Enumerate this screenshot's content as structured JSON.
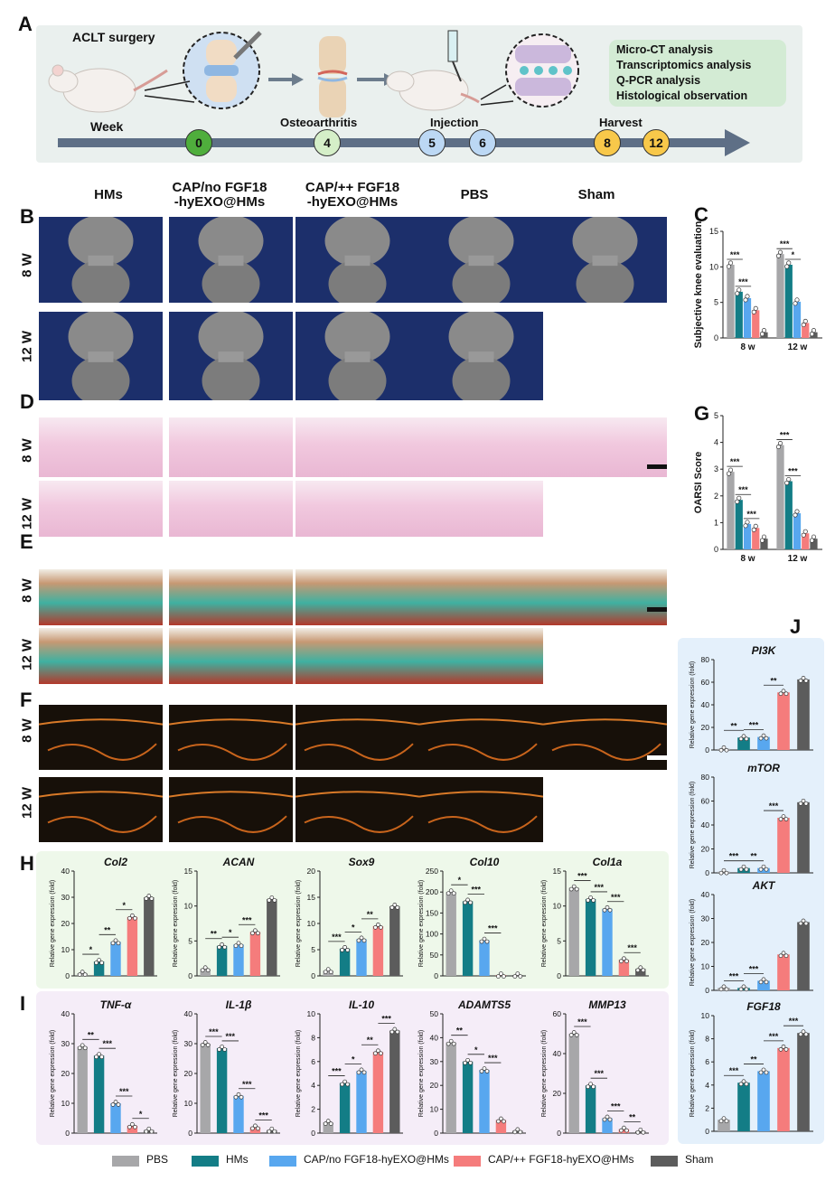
{
  "panel_labels": {
    "A": "A",
    "B": "B",
    "C": "C",
    "D": "D",
    "E": "E",
    "F": "F",
    "G": "G",
    "H": "H",
    "I": "I",
    "J": "J"
  },
  "schematic": {
    "surgery": "ACLT surgery",
    "week": "Week",
    "osteo": "Osteoarthritis",
    "injection": "Injection",
    "harvest": "Harvest",
    "weeks": [
      "0",
      "4",
      "5",
      "6",
      "8",
      "12"
    ],
    "week_colors": [
      "#4fae3c",
      "#d5efc8",
      "#bcd8f4",
      "#bcd8f4",
      "#f8c84a",
      "#f8c84a"
    ],
    "analyses": [
      "Micro-CT analysis",
      "Transcriptomics analysis",
      "Q-PCR analysis",
      "Histological observation"
    ]
  },
  "columns": [
    "HMs",
    "CAP/no FGF18\n-hyEXO@HMs",
    "CAP/++ FGF18\n-hyEXO@HMs",
    "PBS",
    "Sham"
  ],
  "rows": {
    "w8": "8 W",
    "w12": "12 W"
  },
  "legend": [
    {
      "label": "PBS",
      "color": "#a7a7a9"
    },
    {
      "label": "HMs",
      "color": "#137d86"
    },
    {
      "label": "CAP/no FGF18-hyEXO@HMs",
      "color": "#58a7ef"
    },
    {
      "label": "CAP/++ FGF18-hyEXO@HMs",
      "color": "#f57c7c"
    },
    {
      "label": "Sham",
      "color": "#5c5c5c"
    }
  ],
  "chart_data": [
    {
      "id": "C",
      "type": "bar",
      "ylabel": "Subjective knee evaluation",
      "categories": [
        "8 w",
        "12 w"
      ],
      "ylim": [
        0,
        15
      ],
      "yticks": [
        0,
        5,
        10,
        15
      ],
      "series": [
        {
          "name": "PBS",
          "values": [
            10.3,
            11.8
          ]
        },
        {
          "name": "HMs",
          "values": [
            6.5,
            10.3
          ]
        },
        {
          "name": "CAP/no FGF18-hyEXO@HMs",
          "values": [
            5.6,
            5.1
          ]
        },
        {
          "name": "CAP/++ FGF18-hyEXO@HMs",
          "values": [
            3.9,
            2.1
          ]
        },
        {
          "name": "Sham",
          "values": [
            0.8,
            0.8
          ]
        }
      ],
      "annotations": [
        "***",
        "***",
        "***",
        "*"
      ]
    },
    {
      "id": "G",
      "type": "bar",
      "ylabel": "OARSI Score",
      "categories": [
        "8 w",
        "12 w"
      ],
      "ylim": [
        0,
        5
      ],
      "yticks": [
        0,
        1,
        2,
        3,
        4,
        5
      ],
      "series": [
        {
          "name": "PBS",
          "values": [
            2.9,
            3.9
          ]
        },
        {
          "name": "HMs",
          "values": [
            1.85,
            2.55
          ]
        },
        {
          "name": "CAP/no FGF18-hyEXO@HMs",
          "values": [
            0.95,
            1.35
          ]
        },
        {
          "name": "CAP/++ FGF18-hyEXO@HMs",
          "values": [
            0.8,
            0.6
          ]
        },
        {
          "name": "Sham",
          "values": [
            0.4,
            0.4
          ]
        }
      ],
      "annotations": [
        "***",
        "***",
        "***",
        "***",
        "***"
      ]
    },
    {
      "id": "H1",
      "type": "bar",
      "title": "Col2",
      "ylabel": "Relative gene expression (fold)",
      "ylim": [
        0,
        40
      ],
      "yticks": [
        0,
        10,
        20,
        30,
        40
      ],
      "values": [
        1,
        5.5,
        13,
        22.5,
        30
      ],
      "annotations": [
        "*",
        "**",
        "*"
      ]
    },
    {
      "id": "H2",
      "type": "bar",
      "title": "ACAN",
      "ylabel": "Relative gene expression (fold)",
      "ylim": [
        0,
        15
      ],
      "yticks": [
        0,
        5,
        10,
        15
      ],
      "values": [
        1,
        4.3,
        4.5,
        6.3,
        11
      ],
      "annotations": [
        "**",
        "*",
        "***"
      ]
    },
    {
      "id": "H3",
      "type": "bar",
      "title": "Sox9",
      "ylabel": "Relative gene expression (fold)",
      "ylim": [
        0,
        20
      ],
      "yticks": [
        0,
        5,
        10,
        15,
        20
      ],
      "values": [
        1,
        5.2,
        7,
        9.5,
        13.3
      ],
      "annotations": [
        "***",
        "*",
        "**"
      ]
    },
    {
      "id": "H4",
      "type": "bar",
      "title": "Col10",
      "ylabel": "Relative gene expression (fold)",
      "ylim": [
        0,
        250
      ],
      "yticks": [
        0,
        50,
        100,
        150,
        200,
        250
      ],
      "values": [
        200,
        178,
        85,
        2,
        2
      ],
      "annotations": [
        "*",
        "***",
        "***"
      ]
    },
    {
      "id": "H5",
      "type": "bar",
      "title": "Col1a",
      "ylabel": "Relative gene expression (fold)",
      "ylim": [
        0,
        15
      ],
      "yticks": [
        0,
        5,
        10,
        15
      ],
      "values": [
        12.6,
        11,
        9.6,
        2.3,
        1
      ],
      "annotations": [
        "***",
        "***",
        "***",
        "***"
      ]
    },
    {
      "id": "I1",
      "type": "bar",
      "title": "TNF-α",
      "ylabel": "Relative gene expression (fold)",
      "ylim": [
        0,
        40
      ],
      "yticks": [
        0,
        10,
        20,
        30,
        40
      ],
      "values": [
        29,
        26,
        10,
        2.5,
        1
      ],
      "annotations": [
        "**",
        "***",
        "***",
        "*"
      ]
    },
    {
      "id": "I2",
      "type": "bar",
      "title": "IL-1β",
      "ylabel": "Relative gene expression (fold)",
      "ylim": [
        0,
        40
      ],
      "yticks": [
        0,
        10,
        20,
        30,
        40
      ],
      "values": [
        30,
        28.5,
        12.5,
        2,
        1
      ],
      "annotations": [
        "***",
        "***",
        "***",
        "***"
      ]
    },
    {
      "id": "I3",
      "type": "bar",
      "title": "IL-10",
      "ylabel": "Relative gene expression (fold)",
      "ylim": [
        0,
        10
      ],
      "yticks": [
        0,
        2,
        4,
        6,
        8,
        10
      ],
      "values": [
        0.9,
        4.2,
        5.2,
        6.8,
        8.6
      ],
      "annotations": [
        "***",
        "*",
        "**",
        "***"
      ]
    },
    {
      "id": "I4",
      "type": "bar",
      "title": "ADAMTS5",
      "ylabel": "Relative gene expression (fold)",
      "ylim": [
        0,
        50
      ],
      "yticks": [
        0,
        10,
        20,
        30,
        40,
        50
      ],
      "values": [
        38,
        30,
        26.5,
        5.5,
        1
      ],
      "annotations": [
        "**",
        "*",
        "***"
      ]
    },
    {
      "id": "I5",
      "type": "bar",
      "title": "MMP13",
      "ylabel": "Relative gene expression (fold)",
      "ylim": [
        0,
        60
      ],
      "yticks": [
        0,
        20,
        40,
        60
      ],
      "values": [
        50,
        24,
        7.5,
        2,
        1
      ],
      "annotations": [
        "***",
        "***",
        "***",
        "**"
      ]
    },
    {
      "id": "J1",
      "type": "bar",
      "title": "PI3K",
      "ylabel": "Relative gene expression (fold)",
      "ylim": [
        0,
        80
      ],
      "yticks": [
        0,
        20,
        40,
        60,
        80
      ],
      "values": [
        1,
        11,
        11.5,
        51,
        62.5
      ],
      "annotations": [
        "**",
        "***",
        "**"
      ]
    },
    {
      "id": "J2",
      "type": "bar",
      "title": "mTOR",
      "ylabel": "Relative gene expression (fold)",
      "ylim": [
        0,
        80
      ],
      "yticks": [
        0,
        20,
        40,
        60,
        80
      ],
      "values": [
        1,
        4,
        4,
        46,
        59
      ],
      "annotations": [
        "***",
        "**",
        "***"
      ]
    },
    {
      "id": "J3",
      "type": "bar",
      "title": "AKT",
      "ylabel": "Relative gene expression (fold)",
      "ylim": [
        0,
        40
      ],
      "yticks": [
        0,
        10,
        20,
        30,
        40
      ],
      "values": [
        1,
        1,
        4,
        15,
        28.5
      ],
      "annotations": [
        "***",
        "***"
      ]
    },
    {
      "id": "J4",
      "type": "bar",
      "title": "FGF18",
      "ylabel": "Relative gene expression (fold)",
      "ylim": [
        0,
        10
      ],
      "yticks": [
        0,
        2,
        4,
        6,
        8,
        10
      ],
      "values": [
        1,
        4.2,
        5.2,
        7.2,
        8.5
      ],
      "annotations": [
        "***",
        "**",
        "***",
        "***"
      ]
    }
  ]
}
